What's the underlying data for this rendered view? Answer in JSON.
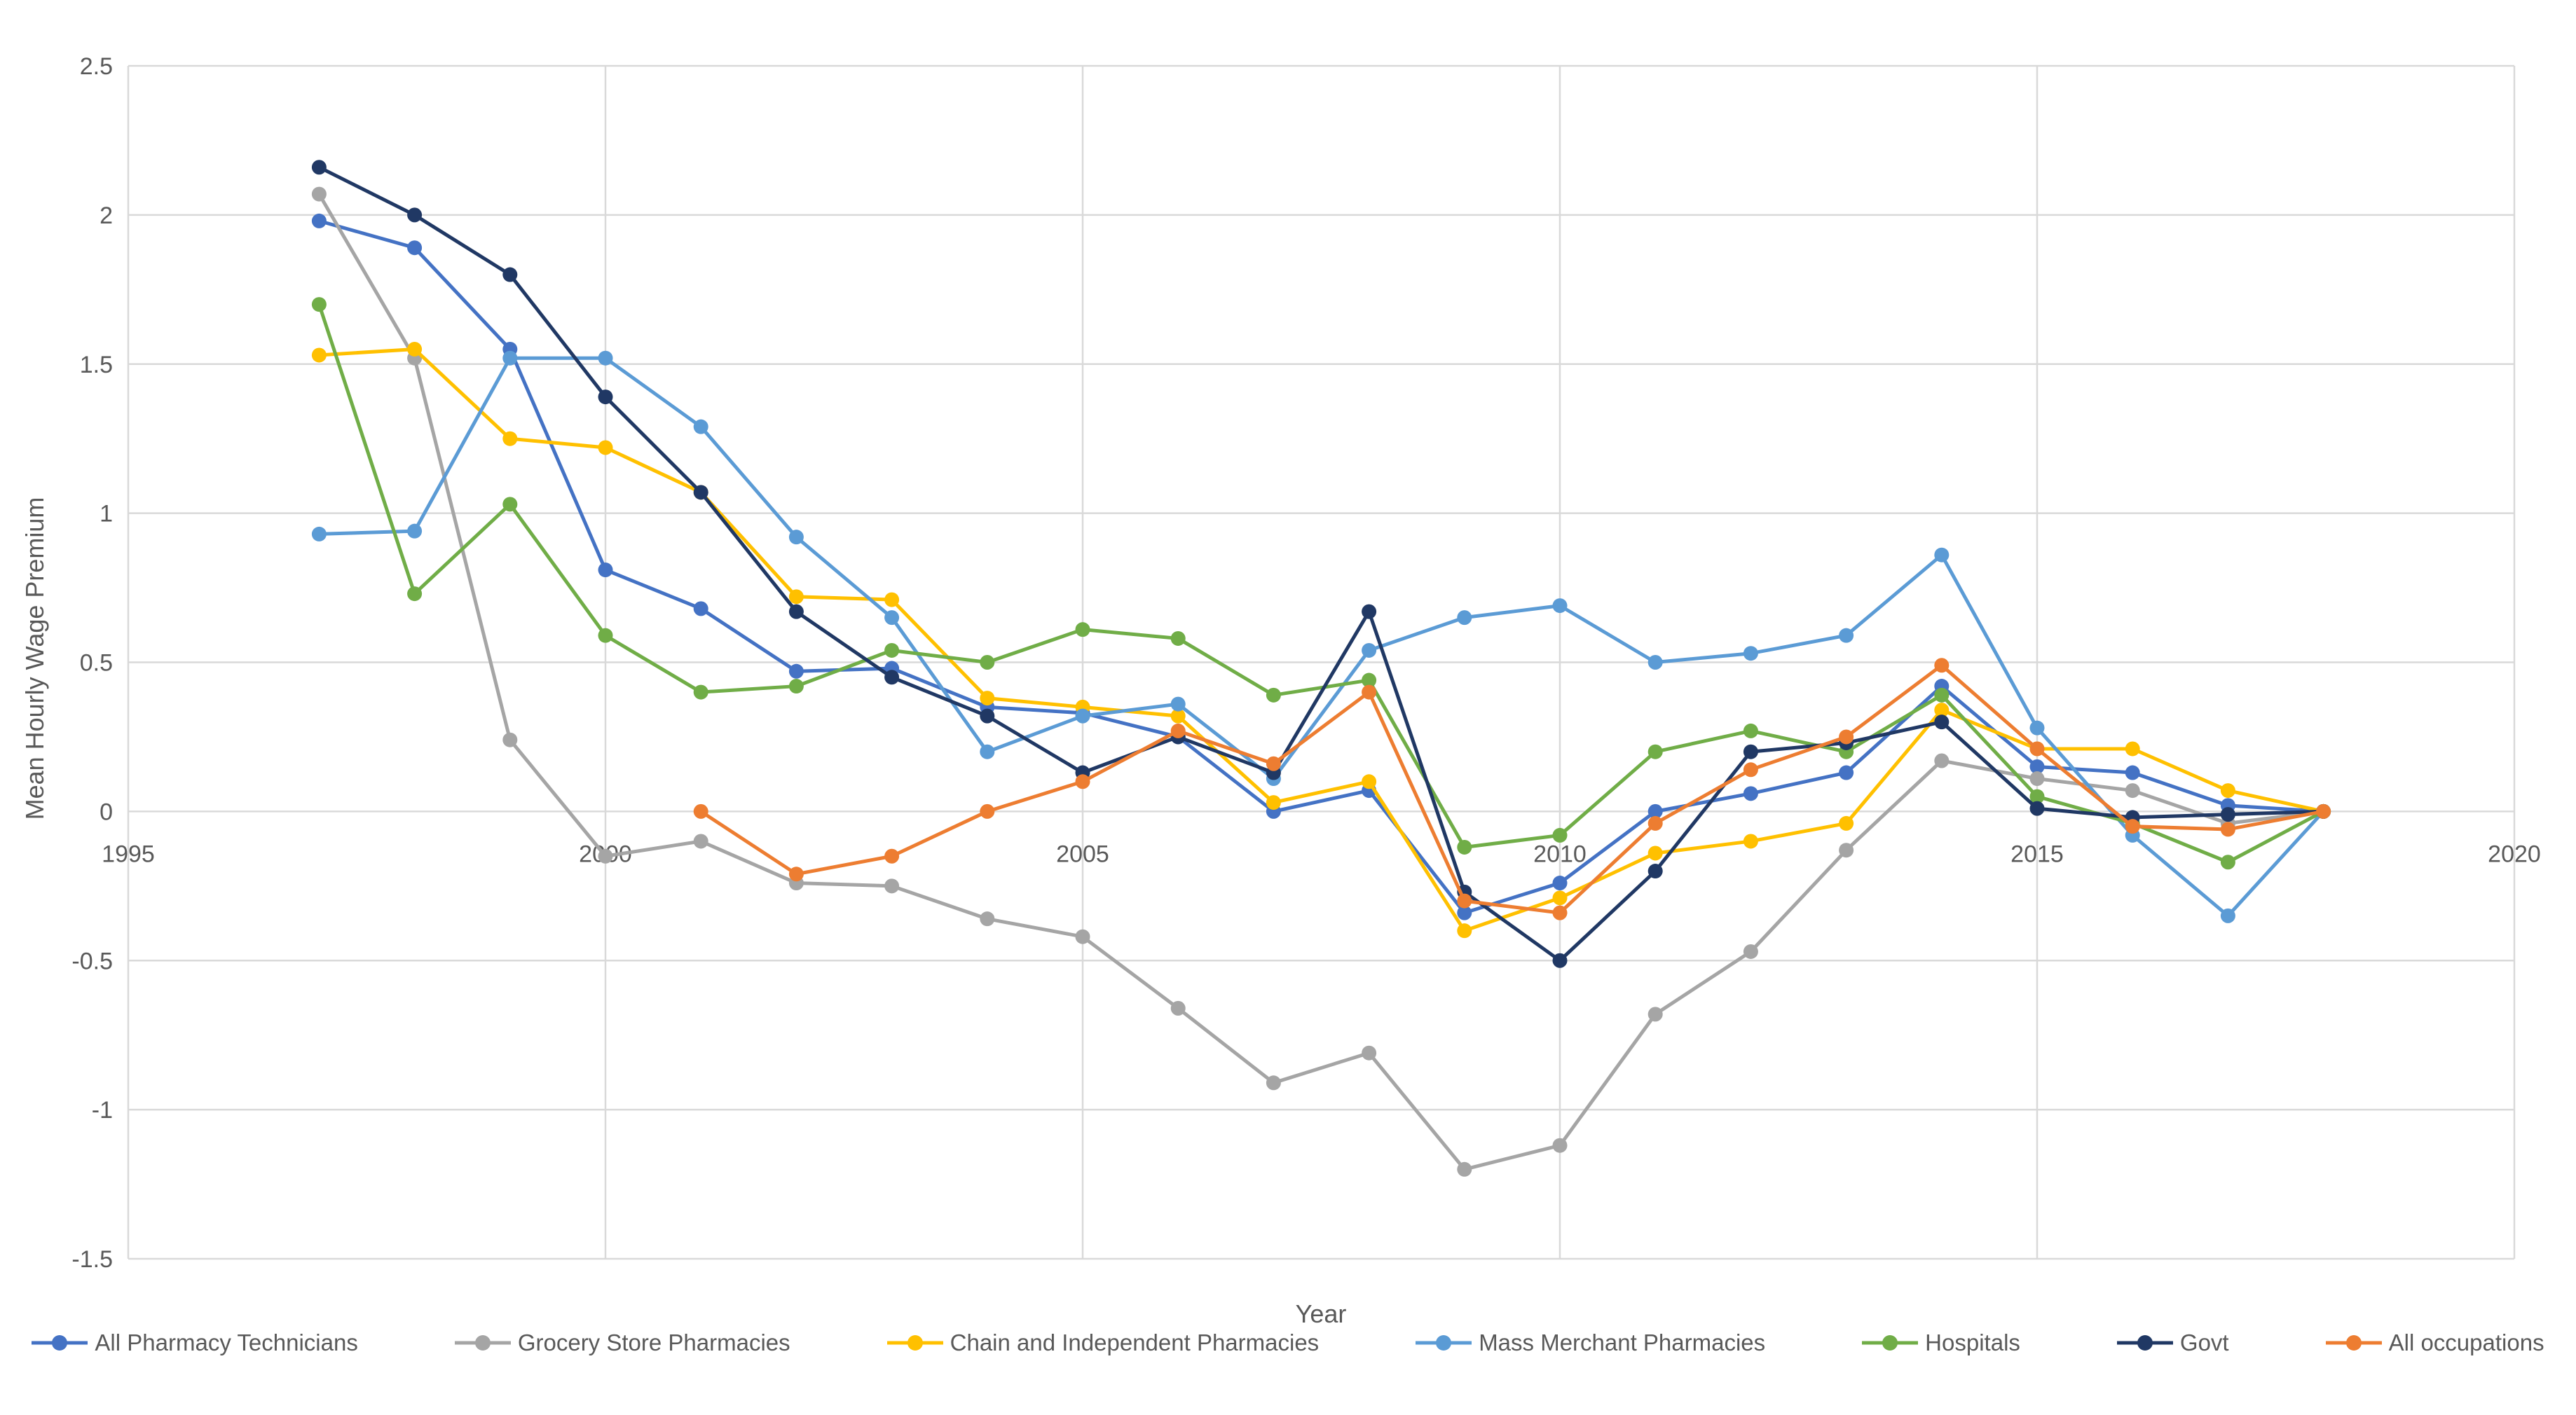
{
  "chart_data": {
    "type": "line",
    "title": "",
    "xlabel": "Year",
    "ylabel": "Mean Hourly Wage Premium",
    "x_ticks": [
      "1995",
      "2000",
      "2005",
      "2010",
      "2015",
      "2020"
    ],
    "y_ticks": [
      "2.5",
      "2",
      "1.5",
      "1",
      "0.5",
      "0",
      "-0.5",
      "-1",
      "-1.5"
    ],
    "xlim": [
      1995,
      2020
    ],
    "ylim": [
      -1.5,
      2.5
    ],
    "grid": true,
    "grid_color": "#D9D9D9",
    "axis_text_color": "#595959",
    "background": "#FFFFFF",
    "legend_position": "bottom",
    "marker": "circle",
    "years": [
      1997,
      1998,
      1999,
      2000,
      2001,
      2002,
      2003,
      2004,
      2005,
      2006,
      2007,
      2008,
      2009,
      2010,
      2011,
      2012,
      2013,
      2014,
      2015,
      2016,
      2017,
      2018
    ],
    "series": [
      {
        "name": "All Pharmacy Technicians",
        "color": "#4472C4",
        "values": [
          1.98,
          1.89,
          1.55,
          0.81,
          0.68,
          0.47,
          0.48,
          0.35,
          0.33,
          0.25,
          0.0,
          0.07,
          -0.34,
          -0.24,
          0.0,
          0.06,
          0.13,
          0.42,
          0.15,
          0.13,
          0.02,
          0.0
        ]
      },
      {
        "name": "Grocery Store Pharmacies",
        "color": "#A5A5A5",
        "values": [
          2.07,
          1.52,
          0.24,
          -0.15,
          -0.1,
          -0.24,
          -0.25,
          -0.36,
          -0.42,
          -0.66,
          -0.91,
          -0.81,
          -1.2,
          -1.12,
          -0.68,
          -0.47,
          -0.13,
          0.17,
          0.11,
          0.07,
          -0.04,
          0.0
        ]
      },
      {
        "name": "Chain and Independent Pharmacies",
        "color": "#FFC000",
        "values": [
          1.53,
          1.55,
          1.25,
          1.22,
          1.07,
          0.72,
          0.71,
          0.38,
          0.35,
          0.32,
          0.03,
          0.1,
          -0.4,
          -0.29,
          -0.14,
          -0.1,
          -0.04,
          0.34,
          0.21,
          0.21,
          0.07,
          0.0
        ]
      },
      {
        "name": "Mass Merchant Pharmacies",
        "color": "#5B9BD5",
        "values": [
          0.93,
          0.94,
          1.52,
          1.52,
          1.29,
          0.92,
          0.65,
          0.2,
          0.32,
          0.36,
          0.11,
          0.54,
          0.65,
          0.69,
          0.5,
          0.53,
          0.59,
          0.86,
          0.28,
          -0.08,
          -0.35,
          0.0
        ]
      },
      {
        "name": "Hospitals",
        "color": "#70AD47",
        "values": [
          1.7,
          0.73,
          1.03,
          0.59,
          0.4,
          0.42,
          0.54,
          0.5,
          0.61,
          0.58,
          0.39,
          0.44,
          -0.12,
          -0.08,
          0.2,
          0.27,
          0.2,
          0.39,
          0.05,
          -0.04,
          -0.17,
          0.0
        ]
      },
      {
        "name": "Govt",
        "color": "#203864",
        "values": [
          2.16,
          2.0,
          1.8,
          1.39,
          1.07,
          0.67,
          0.45,
          0.32,
          0.13,
          0.25,
          0.13,
          0.67,
          -0.27,
          -0.5,
          -0.2,
          0.2,
          0.23,
          0.3,
          0.01,
          -0.02,
          -0.01,
          0.0
        ]
      },
      {
        "name": "All occupations",
        "color": "#ED7D31",
        "values": [
          null,
          null,
          null,
          null,
          0.0,
          -0.21,
          -0.15,
          0.0,
          0.1,
          0.27,
          0.16,
          0.4,
          -0.3,
          -0.34,
          -0.04,
          0.14,
          0.25,
          0.49,
          0.21,
          -0.05,
          -0.06,
          0.0
        ]
      }
    ]
  }
}
